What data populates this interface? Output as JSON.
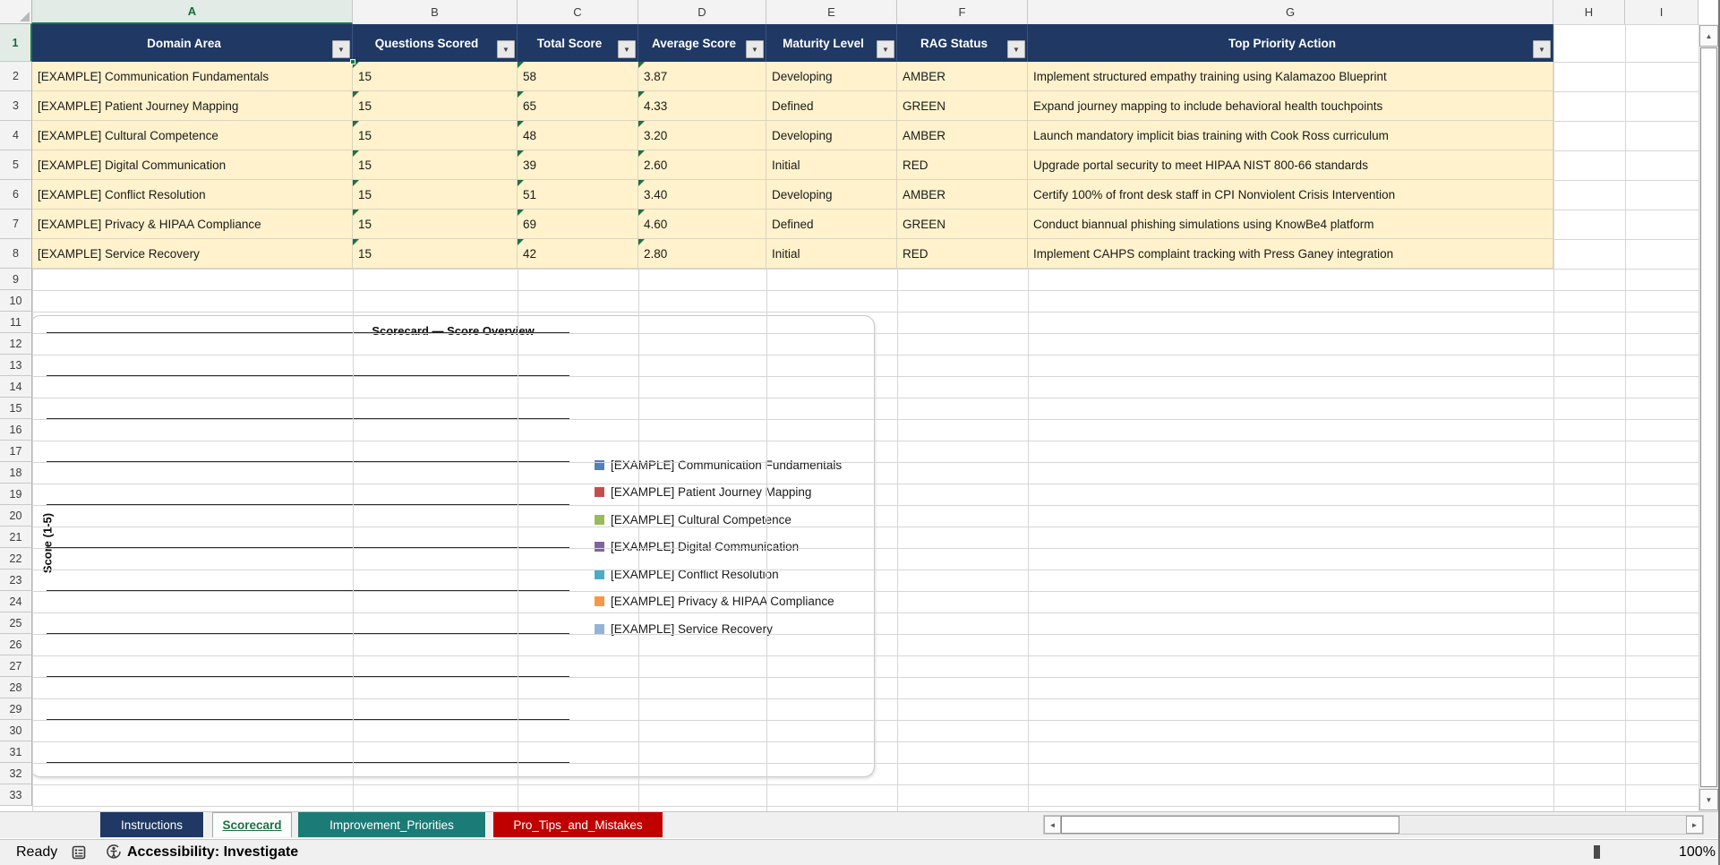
{
  "sheet": {
    "columns": [
      "A",
      "B",
      "C",
      "D",
      "E",
      "F",
      "G",
      "H",
      "I"
    ],
    "first_row": 1,
    "last_row": 33,
    "selected_cell": "A1",
    "selected_column": "A",
    "selected_row": "1"
  },
  "table": {
    "header_bg": "#1F3864",
    "row_bg": "#FFF2CC",
    "headers": [
      "Domain Area",
      "Questions Scored",
      "Total Score",
      "Average Score",
      "Maturity Level",
      "RAG Status",
      "Top Priority Action"
    ],
    "rows": [
      [
        "[EXAMPLE] Communication Fundamentals",
        "15",
        "58",
        "3.87",
        "Developing",
        "AMBER",
        "Implement structured empathy training using Kalamazoo Blueprint"
      ],
      [
        "[EXAMPLE] Patient Journey Mapping",
        "15",
        "65",
        "4.33",
        "Defined",
        "GREEN",
        "Expand journey mapping to include behavioral health touchpoints"
      ],
      [
        "[EXAMPLE] Cultural Competence",
        "15",
        "48",
        "3.20",
        "Developing",
        "AMBER",
        "Launch mandatory implicit bias training with Cook Ross curriculum"
      ],
      [
        "[EXAMPLE] Digital Communication",
        "15",
        "39",
        "2.60",
        "Initial",
        "RED",
        "Upgrade portal security to meet HIPAA NIST 800-66 standards"
      ],
      [
        "[EXAMPLE] Conflict Resolution",
        "15",
        "51",
        "3.40",
        "Developing",
        "AMBER",
        "Certify 100% of front desk staff in CPI Nonviolent Crisis Intervention"
      ],
      [
        "[EXAMPLE] Privacy & HIPAA Compliance",
        "15",
        "69",
        "4.60",
        "Defined",
        "GREEN",
        "Conduct biannual phishing simulations using KnowBe4 platform"
      ],
      [
        "[EXAMPLE] Service Recovery",
        "15",
        "42",
        "2.80",
        "Initial",
        "RED",
        "Implement CAHPS complaint tracking with Press Ganey integration"
      ]
    ]
  },
  "chart_data": {
    "type": "bar",
    "title": "Scorecard — Score Overview",
    "ylabel": "Score (1-5)",
    "legend_position": "right",
    "gridline_count": 11,
    "values_visible": false,
    "series": [
      {
        "name": "[EXAMPLE] Communication Fundamentals",
        "color": "#4F81BD"
      },
      {
        "name": "[EXAMPLE] Patient Journey Mapping",
        "color": "#C0504D"
      },
      {
        "name": "[EXAMPLE] Cultural Competence",
        "color": "#9BBB59"
      },
      {
        "name": "[EXAMPLE] Digital Communication",
        "color": "#8064A2"
      },
      {
        "name": "[EXAMPLE] Conflict Resolution",
        "color": "#4BACC6"
      },
      {
        "name": "[EXAMPLE] Privacy & HIPAA Compliance",
        "color": "#F79646"
      },
      {
        "name": "[EXAMPLE] Service Recovery",
        "color": "#95B3D7"
      }
    ]
  },
  "tabs": {
    "items": [
      {
        "label": "Instructions",
        "bg": "#1F3864",
        "fg": "#FFFFFF",
        "active": false
      },
      {
        "label": "Scorecard",
        "bg": "#FAFDFB",
        "fg": "#1E7145",
        "active": true
      },
      {
        "label": "Improvement_Priorities",
        "bg": "#1B7B76",
        "fg": "#FFFFFF",
        "active": false
      },
      {
        "label": "Pro_Tips_and_Mistakes",
        "bg": "#C00000",
        "fg": "#FFFFFF",
        "active": false
      }
    ]
  },
  "icons": {
    "filter_dropdown": "▼",
    "tab_scroll_left": "◀",
    "tab_scroll_right": "▶",
    "hscroll_left": "◄",
    "hscroll_right": "►",
    "vscroll_up": "▲",
    "vscroll_down": "▼",
    "add_sheet": "+",
    "more_dots": "⋮",
    "zoom_out": "−",
    "zoom_in": "+"
  },
  "status_bar": {
    "ready": "Ready",
    "accessibility": "Accessibility: Investigate",
    "zoom": "100%"
  }
}
